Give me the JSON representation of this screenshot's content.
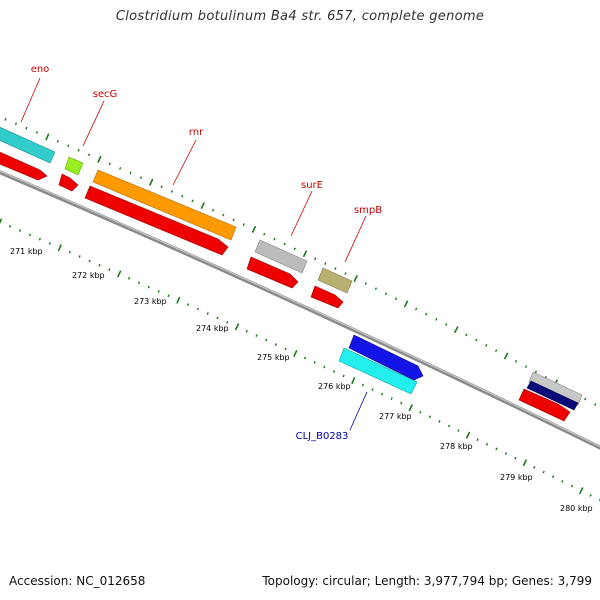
{
  "title": "Clostridium botulinum Ba4 str. 657, complete genome",
  "accession": "Accession: NC_012658",
  "topology": "Topology: circular; Length: 3,977,794 bp; Genes: 3,799",
  "colors": {
    "backbone": "#8a8a8a",
    "tick": "#1a7a1a",
    "label_red": "#cc0000",
    "label_blue": "#0000aa",
    "cds": "#ee0000"
  },
  "scale_labels": [
    "271 kbp",
    "272 kbp",
    "273 kbp",
    "274 kbp",
    "275 kbp",
    "276 kbp",
    "277 kbp",
    "278 kbp",
    "279 kbp",
    "280 kbp"
  ],
  "genes": [
    {
      "name": "eno",
      "color": "#33cccc"
    },
    {
      "name": "secG",
      "color": "#99ee22"
    },
    {
      "name": "rnr",
      "color": "#ff9900"
    },
    {
      "name": "surE",
      "color": "#bbbbbb"
    },
    {
      "name": "smpB",
      "color": "#b8b070"
    },
    {
      "name": "CLJ_B0283",
      "color": "#22eeee"
    }
  ],
  "extra_features": [
    {
      "color": "#1414e6"
    },
    {
      "color": "#c8c8c8"
    },
    {
      "color": "#0a0a7a"
    }
  ]
}
